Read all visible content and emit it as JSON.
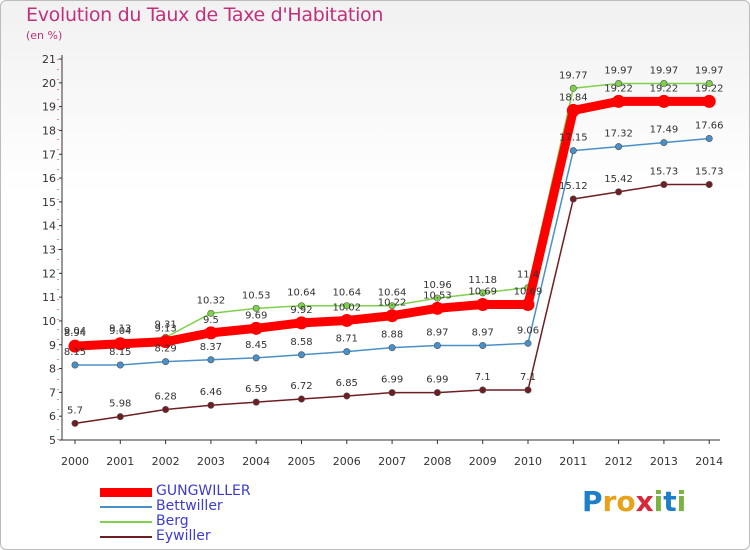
{
  "chart_data": {
    "type": "line",
    "title": "Evolution du Taux de Taxe d'Habitation",
    "ylabel": "(en %)",
    "xlabel": "",
    "x": [
      "2000",
      "2001",
      "2002",
      "2003",
      "2004",
      "2005",
      "2006",
      "2007",
      "2008",
      "2009",
      "2010",
      "2011",
      "2012",
      "2013",
      "2014"
    ],
    "y_ticks": [
      "5",
      "6",
      "7",
      "8",
      "9",
      "10",
      "11",
      "12",
      "13",
      "14",
      "15",
      "16",
      "17",
      "18",
      "19",
      "20",
      "21"
    ],
    "ylim": [
      5,
      21
    ],
    "grid": false,
    "legend_position": "bottom-left",
    "series": [
      {
        "name": "GUNGWILLER",
        "color": "#ff0000",
        "values": [
          8.94,
          9.04,
          9.13,
          9.5,
          9.69,
          9.92,
          10.02,
          10.22,
          10.53,
          10.69,
          10.69,
          18.84,
          19.22,
          19.22,
          19.22
        ],
        "labels": [
          "8.94",
          "9.04",
          "9.13",
          "9.5",
          "9.69",
          "9.92",
          "10.02",
          "10.22",
          "10.53",
          "10.69",
          "10.69",
          "18.84",
          "19.22",
          "19.22",
          "19.22"
        ]
      },
      {
        "name": "Bettwiller",
        "color": "#4a90c8",
        "values": [
          8.15,
          8.15,
          8.29,
          8.37,
          8.45,
          8.58,
          8.71,
          8.88,
          8.97,
          8.97,
          9.06,
          17.15,
          17.32,
          17.49,
          17.66
        ],
        "labels": [
          "8.15",
          "8.15",
          "8.29",
          "8.37",
          "8.45",
          "8.58",
          "8.71",
          "8.88",
          "8.97",
          "8.97",
          "9.06",
          "17.15",
          "17.32",
          "17.49",
          "17.66"
        ]
      },
      {
        "name": "Berg",
        "color": "#7ed14a",
        "values": [
          9.04,
          9.13,
          9.31,
          10.32,
          10.53,
          10.64,
          10.64,
          10.64,
          10.96,
          11.18,
          11.4,
          19.77,
          19.97,
          19.97,
          19.97
        ],
        "labels": [
          "9.04",
          "9.13",
          "9.31",
          "10.32",
          "10.53",
          "10.64",
          "10.64",
          "10.64",
          "10.96",
          "11.18",
          "11.4",
          "19.77",
          "19.97",
          "19.97",
          "19.97"
        ]
      },
      {
        "name": "Eywiller",
        "color": "#6e1e23",
        "values": [
          5.7,
          5.98,
          6.28,
          6.46,
          6.59,
          6.72,
          6.85,
          6.99,
          6.99,
          7.1,
          7.1,
          15.12,
          15.42,
          15.73,
          15.73
        ],
        "labels": [
          "5.7",
          "5.98",
          "6.28",
          "6.46",
          "6.59",
          "6.72",
          "6.85",
          "6.99",
          "6.99",
          "7.1",
          "7.1",
          "15.12",
          "15.42",
          "15.73",
          "15.73"
        ]
      }
    ]
  },
  "logo": {
    "letters": [
      {
        "ch": "P",
        "color": "#1e7fc8"
      },
      {
        "ch": "r",
        "color": "#e8a21a"
      },
      {
        "ch": "o",
        "color": "#e8a21a"
      },
      {
        "ch": "x",
        "color": "#d8283a"
      },
      {
        "ch": "i",
        "color": "#7ab342"
      },
      {
        "ch": "t",
        "color": "#1e7fc8"
      },
      {
        "ch": "i",
        "color": "#7ab342"
      }
    ]
  }
}
